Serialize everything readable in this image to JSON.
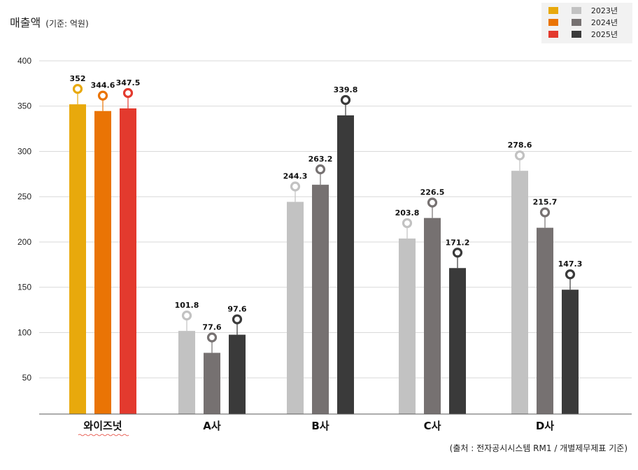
{
  "chart_data": {
    "type": "bar",
    "title": "매출액",
    "unit": "(기준: 억원)",
    "categories": [
      "와이즈넛",
      "A사",
      "B사",
      "C사",
      "D사"
    ],
    "series": [
      {
        "name": "2023년",
        "values": [
          352,
          101.8,
          244.3,
          203.8,
          278.6
        ]
      },
      {
        "name": "2024년",
        "values": [
          344.6,
          77.6,
          263.2,
          226.5,
          215.7
        ]
      },
      {
        "name": "2025년",
        "values": [
          347.5,
          97.6,
          339.8,
          171.2,
          147.3
        ]
      }
    ],
    "data_labels": [
      [
        "352",
        "344.6",
        "347.5"
      ],
      [
        "101.8",
        "77.6",
        "97.6"
      ],
      [
        "244.3",
        "263.2",
        "339.8"
      ],
      [
        "203.8",
        "226.5",
        "171.2"
      ],
      [
        "278.6",
        "215.7",
        "147.3"
      ]
    ],
    "yticks": [
      "400",
      "350",
      "300",
      "250",
      "200",
      "150",
      "100",
      "50"
    ],
    "ylim": [
      10,
      400
    ],
    "grid": true,
    "legend_position": "top-right",
    "colors": {
      "highlight": [
        "#E8A90C",
        "#EA7405",
        "#E33A2E"
      ],
      "others": [
        "#C2C2C2",
        "#767171",
        "#3A3A3A"
      ],
      "highlight_label": "#EA7405",
      "grid": "#D9D9D9",
      "axis": "#595959",
      "legend_bg": "#F2F2F2"
    },
    "source": "(출처 : 전자공시시스템 RM1 / 개별제무제표 기준)"
  }
}
